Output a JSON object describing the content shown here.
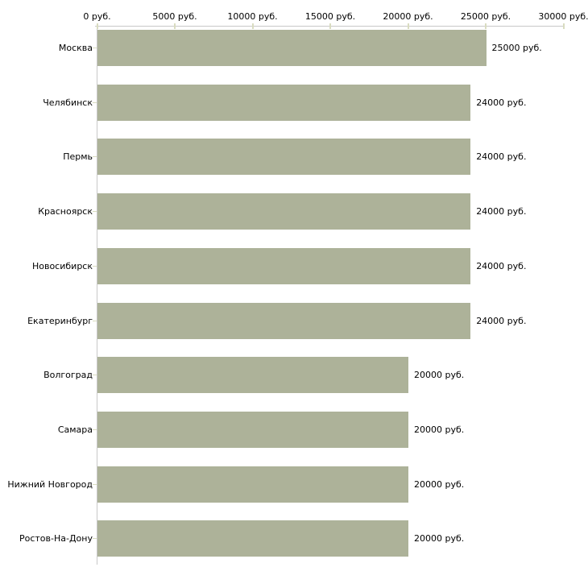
{
  "chart_data": {
    "type": "bar",
    "orientation": "horizontal",
    "title": "",
    "xlabel": "",
    "ylabel": "",
    "unit": "руб.",
    "xlim": [
      0,
      30000
    ],
    "grid": false,
    "legend": false,
    "categories": [
      "Москва",
      "Челябинск",
      "Пермь",
      "Красноярск",
      "Новосибирск",
      "Екатеринбург",
      "Волгоград",
      "Самара",
      "Нижний Новгород",
      "Ростов-На-Дону"
    ],
    "values": [
      25000,
      24000,
      24000,
      24000,
      24000,
      24000,
      20000,
      20000,
      20000,
      20000
    ],
    "value_labels": [
      "25000 руб.",
      "24000 руб.",
      "24000 руб.",
      "24000 руб.",
      "24000 руб.",
      "24000 руб.",
      "20000 руб.",
      "20000 руб.",
      "20000 руб.",
      "20000 руб."
    ],
    "x_tick_values": [
      0,
      5000,
      10000,
      15000,
      20000,
      25000,
      30000
    ],
    "x_tick_labels": [
      "0 руб.",
      "5000 руб.",
      "10000 руб.",
      "15000 руб.",
      "20000 руб.",
      "25000 руб.",
      "30000 руб."
    ],
    "colors": {
      "bar": "#adb299",
      "axis": "#c8c8c8",
      "tick": "#d9dcc0",
      "text": "#000000",
      "background": "#ffffff"
    }
  }
}
